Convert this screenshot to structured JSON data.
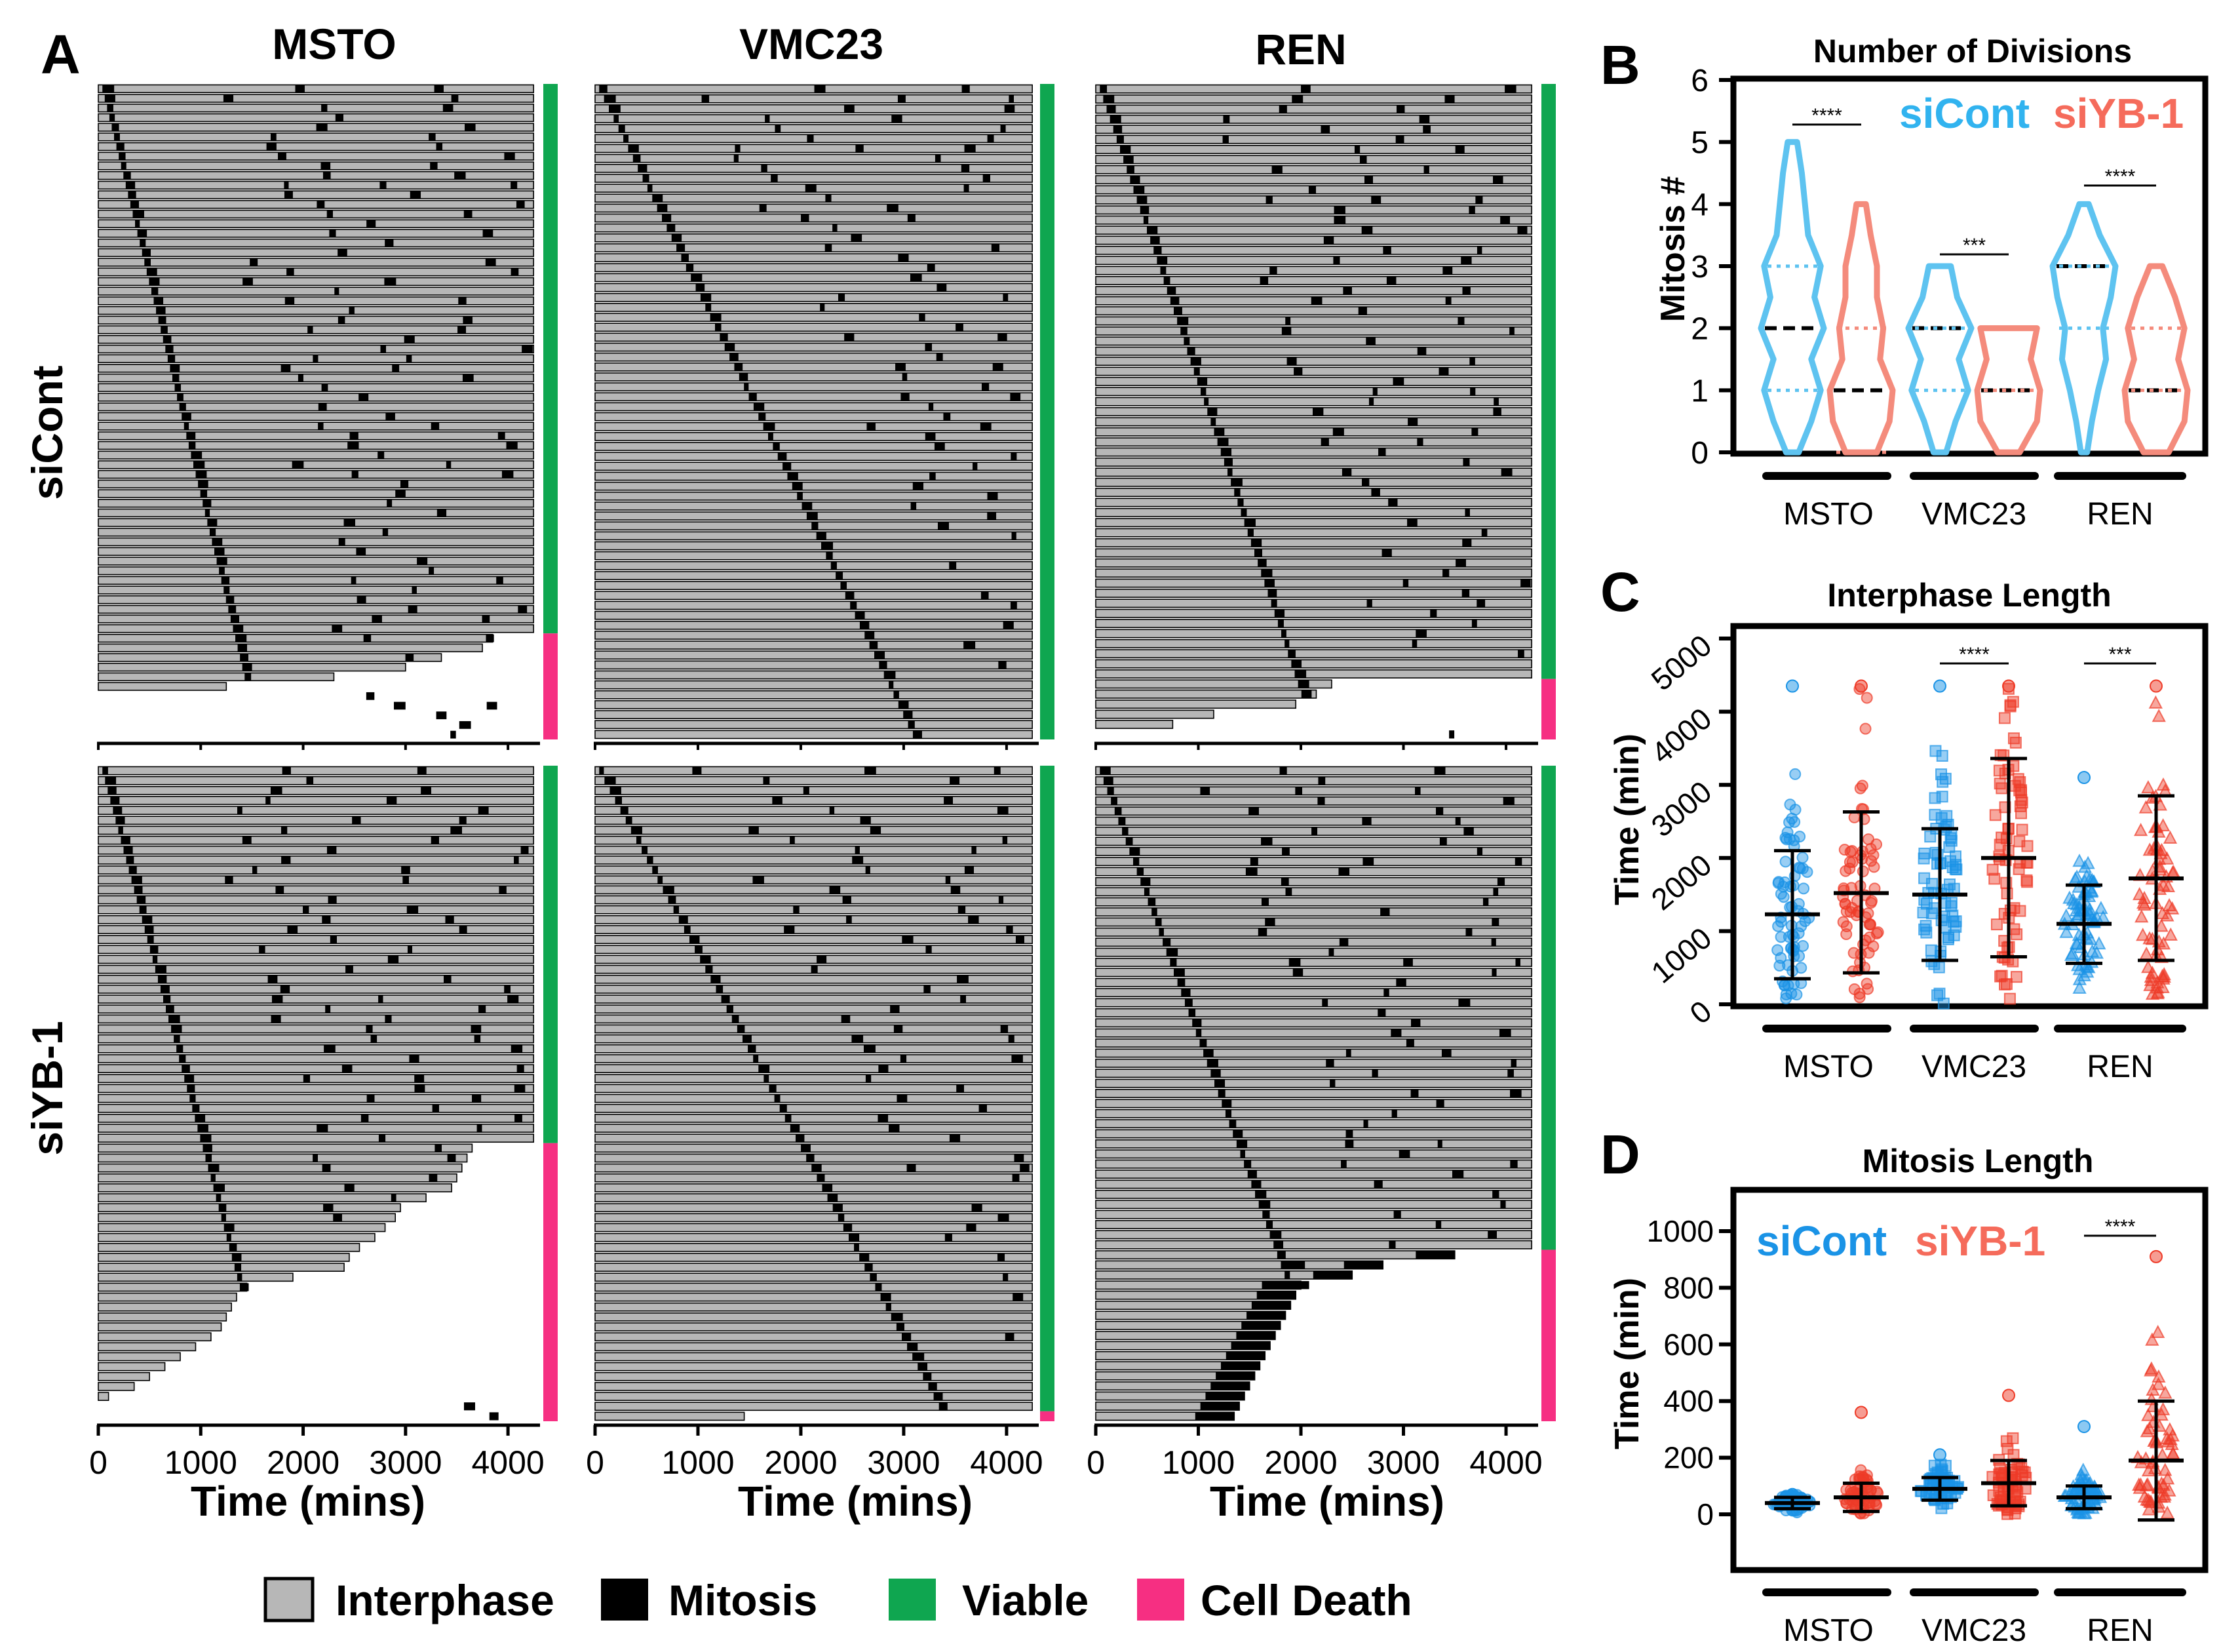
{
  "chart_data": [
    {
      "panel": "A",
      "type": "bar",
      "description_kind": "cell-fate single-cell timelines",
      "column_titles": [
        "MSTO",
        "VMC23",
        "REN"
      ],
      "row_titles": [
        "siCont",
        "siYB-1"
      ],
      "xlabel": "Time (mins)",
      "xticks": [
        "0",
        "1000",
        "2000",
        "3000",
        "4000"
      ],
      "xlim": [
        0,
        4300
      ],
      "legend": [
        {
          "label": "Interphase",
          "color": "#b7b7b7"
        },
        {
          "label": "Mitosis",
          "color": "#000000"
        },
        {
          "label": "Viable",
          "color": "#0fa650"
        },
        {
          "label": "Cell Death",
          "color": "#f62f82"
        }
      ],
      "subpanels": [
        {
          "cell_line": "MSTO",
          "condition": "siCont",
          "n_cells": 68,
          "n_viable": 57,
          "death_end_times": [
            3850,
            3750,
            3350,
            3000,
            2300,
            1250
          ]
        },
        {
          "cell_line": "VMC23",
          "condition": "siCont",
          "n_cells": 66,
          "n_viable": 66,
          "death_end_times": []
        },
        {
          "cell_line": "REN",
          "condition": "siCont",
          "n_cells": 65,
          "n_viable": 59,
          "death_end_times": [
            2300,
            2150,
            1950,
            1150,
            750
          ]
        },
        {
          "cell_line": "MSTO",
          "condition": "siYB-1",
          "n_cells": 66,
          "n_viable": 38,
          "death_end_times": [
            3650,
            3600,
            3550,
            3500,
            3450,
            3200,
            2950,
            2900,
            2800,
            2700,
            2550,
            2450,
            2400,
            1900,
            1450,
            1350,
            1300,
            1250,
            1200,
            1100,
            950,
            800,
            650,
            500,
            350,
            100
          ]
        },
        {
          "cell_line": "VMC23",
          "condition": "siYB-1",
          "n_cells": 66,
          "n_viable": 65,
          "death_end_times": [
            1450
          ]
        },
        {
          "cell_line": "REN",
          "condition": "siYB-1",
          "n_cells": 65,
          "n_viable": 48,
          "death_end_times": [
            3500,
            2800,
            2500,
            2000,
            1950,
            1900,
            1850,
            1800,
            1750,
            1700,
            1650,
            1600,
            1550,
            1500,
            1450,
            1400,
            1350
          ]
        }
      ]
    },
    {
      "panel": "B",
      "type": "violin",
      "title": "Number of Divisions",
      "ylabel": "Mitosis #",
      "ylim": [
        0,
        6
      ],
      "yticks": [
        "0",
        "1",
        "2",
        "3",
        "4",
        "5",
        "6"
      ],
      "categories": [
        "MSTO",
        "VMC23",
        "REN"
      ],
      "legend": [
        {
          "label": "siCont",
          "color": "#31b3ef"
        },
        {
          "label": "siYB-1",
          "color": "#f56b5b"
        }
      ],
      "series": [
        {
          "name": "siCont",
          "range": [
            [
              0,
              5
            ],
            [
              0,
              3
            ],
            [
              0,
              4
            ]
          ],
          "median": [
            2,
            2,
            3
          ],
          "quartiles": [
            [
              1,
              3
            ],
            [
              1,
              2
            ],
            [
              2,
              3
            ]
          ]
        },
        {
          "name": "siYB-1",
          "range": [
            [
              0,
              4
            ],
            [
              0,
              2
            ],
            [
              0,
              3
            ]
          ],
          "median": [
            1,
            1,
            1
          ],
          "quartiles": [
            [
              0,
              2
            ],
            [
              1,
              1
            ],
            [
              1,
              2
            ]
          ]
        }
      ],
      "significance": [
        "****",
        "***",
        "****"
      ]
    },
    {
      "panel": "C",
      "type": "scatter",
      "title": "Interphase Length",
      "ylabel": "Time (min)",
      "ylim": [
        0,
        5000
      ],
      "yticks": [
        "0",
        "1000",
        "2000",
        "3000",
        "4000",
        "5000"
      ],
      "categories": [
        "MSTO",
        "VMC23",
        "REN"
      ],
      "series": [
        {
          "name": "siCont",
          "color": "#1a93e6",
          "mean": [
            1230,
            1500,
            1100
          ],
          "sd_low": [
            350,
            600,
            560
          ],
          "sd_high": [
            2100,
            2400,
            1630
          ],
          "max": [
            4350,
            4350,
            3100
          ]
        },
        {
          "name": "siYB-1",
          "color": "#ee3b28",
          "mean": [
            1520,
            2000,
            1720
          ],
          "sd_low": [
            430,
            650,
            600
          ],
          "sd_high": [
            2630,
            3360,
            2850
          ],
          "max": [
            4350,
            4350,
            4350
          ]
        }
      ],
      "significance": [
        {
          "group": "VMC23",
          "label": "****"
        },
        {
          "group": "REN",
          "label": "***"
        }
      ]
    },
    {
      "panel": "D",
      "type": "scatter",
      "title": "Mitosis Length",
      "ylabel": "Time (min)",
      "ylim": [
        -100,
        1100
      ],
      "yticks": [
        "0",
        "200",
        "400",
        "600",
        "800",
        "1000"
      ],
      "categories": [
        "MSTO",
        "VMC23",
        "REN"
      ],
      "legend": [
        {
          "label": "siCont",
          "color": "#1a93e6"
        },
        {
          "label": "siYB-1",
          "color": "#f56b5b"
        }
      ],
      "series": [
        {
          "name": "siCont",
          "color": "#1a93e6",
          "mean": [
            40,
            90,
            60
          ],
          "sd_low": [
            20,
            50,
            20
          ],
          "sd_high": [
            60,
            130,
            100
          ],
          "max": [
            70,
            210,
            310
          ]
        },
        {
          "name": "siYB-1",
          "color": "#ee3b28",
          "mean": [
            60,
            110,
            190
          ],
          "sd_low": [
            10,
            30,
            -20
          ],
          "sd_high": [
            110,
            190,
            400
          ],
          "max": [
            360,
            420,
            910
          ]
        }
      ],
      "significance": [
        {
          "group": "REN",
          "label": "****"
        }
      ]
    }
  ],
  "labels": {
    "panel_letters": [
      "A",
      "B",
      "C",
      "D"
    ],
    "interphase": "Interphase",
    "mitosis": "Mitosis",
    "viable": "Viable",
    "cell_death": "Cell Death",
    "sicont": "siCont",
    "siyb1": "siYB-1"
  }
}
